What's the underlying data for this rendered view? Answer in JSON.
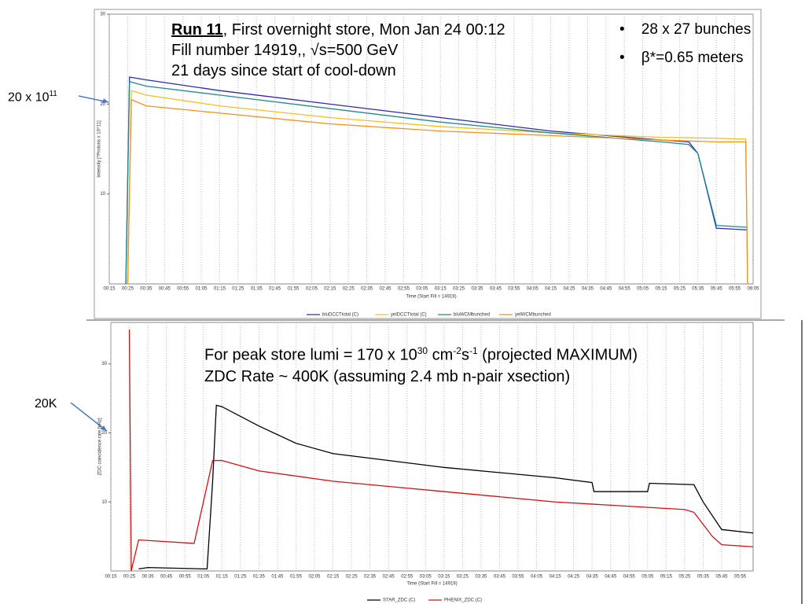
{
  "chart_data": [
    {
      "type": "line",
      "y_label": "Intensity [*Protons x 10^11]",
      "x_label": "Time (Start Fill = 14919)",
      "xlim": [
        "00:15",
        "06:05"
      ],
      "ylim": [
        0,
        30
      ],
      "yticks": [
        10,
        20,
        30
      ],
      "grid": true,
      "xticks": [
        "00:15",
        "00:25",
        "00:35",
        "00:45",
        "00:55",
        "01:05",
        "01:15",
        "01:25",
        "01:35",
        "01:45",
        "01:55",
        "02:05",
        "02:15",
        "02:25",
        "02:35",
        "02:45",
        "02:55",
        "03:05",
        "03:15",
        "03:25",
        "03:35",
        "03:45",
        "03:55",
        "04:05",
        "04:15",
        "04:25",
        "04:35",
        "04:45",
        "04:55",
        "05:05",
        "05:15",
        "05:25",
        "05:35",
        "05:45",
        "05:55",
        "06:05"
      ],
      "series": [
        {
          "name": "bluDCCTtotal (C)",
          "color": "#2b2bb0",
          "x": [
            "00:24",
            "00:26",
            "00:35",
            "01:15",
            "02:15",
            "03:15",
            "04:15",
            "05:15",
            "05:30",
            "05:35",
            "05:45",
            "06:02"
          ],
          "values": [
            0,
            23,
            22.7,
            21.5,
            20,
            18.5,
            17,
            16,
            15.8,
            14.5,
            6.2,
            6
          ]
        },
        {
          "name": "yelDCCTtotal (C)",
          "color": "#f2c01e",
          "x": [
            "00:25",
            "00:27",
            "00:35",
            "01:15",
            "02:15",
            "03:15",
            "04:15",
            "05:15",
            "05:45",
            "06:01",
            "06:02"
          ],
          "values": [
            0,
            21.5,
            21,
            19.8,
            18.5,
            17.5,
            16.8,
            16.3,
            16.2,
            16.1,
            0
          ]
        },
        {
          "name": "bluWCMbunched",
          "color": "#1f8a8a",
          "x": [
            "00:24",
            "00:26",
            "00:35",
            "01:15",
            "02:15",
            "03:15",
            "04:15",
            "05:15",
            "05:30",
            "05:35",
            "05:45",
            "06:02"
          ],
          "values": [
            0,
            22.5,
            22,
            21,
            19.5,
            18,
            16.8,
            15.8,
            15.5,
            14.5,
            6.5,
            6.3
          ]
        },
        {
          "name": "yelWCMbunched",
          "color": "#f5901e",
          "x": [
            "00:25",
            "00:27",
            "00:35",
            "01:15",
            "02:15",
            "03:15",
            "04:15",
            "05:15",
            "05:45",
            "06:01",
            "06:02"
          ],
          "values": [
            0,
            20.5,
            19.8,
            19,
            17.8,
            17,
            16.5,
            16,
            15.8,
            15.8,
            0
          ]
        }
      ]
    },
    {
      "type": "line",
      "y_label": "ZDC coincidence rate [kHz]",
      "x_label": "Time (Start Fill = 14919)",
      "xlim": [
        "00:15",
        "06:02"
      ],
      "ylim": [
        0,
        36
      ],
      "yticks": [
        10,
        20,
        30
      ],
      "grid": true,
      "xticks": [
        "00:15",
        "00:25",
        "00:35",
        "00:45",
        "00:55",
        "01:05",
        "01:15",
        "01:25",
        "01:35",
        "01:45",
        "01:55",
        "02:05",
        "02:15",
        "02:25",
        "02:35",
        "02:45",
        "02:55",
        "03:05",
        "03:15",
        "03:25",
        "03:35",
        "03:45",
        "03:55",
        "04:05",
        "04:15",
        "04:25",
        "04:35",
        "04:45",
        "04:55",
        "05:05",
        "05:15",
        "05:25",
        "05:35",
        "05:45",
        "05:55"
      ],
      "series": [
        {
          "name": "STAR_ZDC (C)",
          "color": "#000000",
          "x": [
            "00:30",
            "00:35",
            "01:05",
            "01:07",
            "01:10",
            "01:12",
            "01:15",
            "01:35",
            "01:55",
            "02:15",
            "03:15",
            "04:15",
            "04:35",
            "04:36",
            "05:05",
            "05:06",
            "05:30",
            "05:35",
            "05:45",
            "06:02"
          ],
          "values": [
            0.3,
            0.5,
            0.3,
            0.3,
            13,
            24,
            23.8,
            21,
            18.5,
            17,
            15,
            13.5,
            12.8,
            11.5,
            11.5,
            12.7,
            12.5,
            10,
            6,
            5.5
          ]
        },
        {
          "name": "PHENIX_ZDC (C)",
          "color": "#d01010",
          "x": [
            "00:25",
            "00:26",
            "00:30",
            "01:00",
            "01:05",
            "01:10",
            "01:15",
            "01:35",
            "02:15",
            "03:15",
            "04:15",
            "05:25",
            "05:30",
            "05:40",
            "05:45",
            "06:02"
          ],
          "values": [
            35,
            0,
            4.5,
            4,
            10,
            16,
            16,
            14.5,
            13,
            11.5,
            10,
            8.9,
            8.5,
            5,
            3.8,
            3.5
          ]
        }
      ]
    }
  ],
  "slide": {
    "run": "Run 11",
    "run_rest": ", First overnight store, Mon Jan 24 00:12",
    "fill": "Fill number 14919,, √s=500 GeV",
    "days": "21 days since start of cool-down",
    "bullets": [
      "28 x 27 bunches",
      "β*=0.65 meters"
    ],
    "arrow1": {
      "base": "20 x 10",
      "sup": "11"
    },
    "lumi": {
      "a": "For peak store lumi = 170 x 10",
      "b": "30",
      "c": " cm",
      "d": "-2",
      "e": "s",
      "f": "-1",
      "g": " (projected MAXIMUM)"
    },
    "zdc": "ZDC Rate ~ 400K (assuming 2.4 mb n-pair xsection)",
    "arrow2": "20K"
  }
}
